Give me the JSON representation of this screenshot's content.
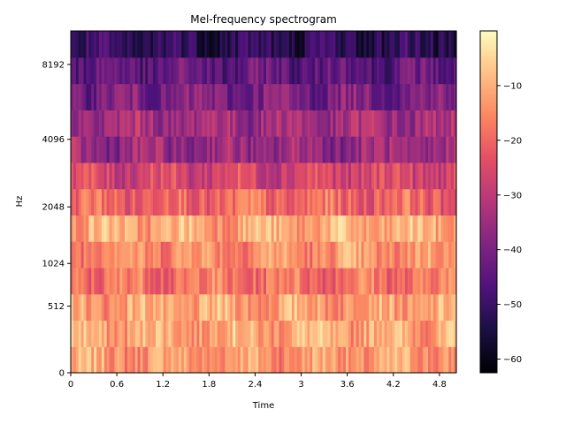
{
  "chart_data": {
    "type": "heatmap",
    "title": "Mel-frequency spectrogram",
    "xlabel": "Time",
    "ylabel": "Hz",
    "x_ticks": [
      "0",
      "0.6",
      "1.2",
      "1.8",
      "2.4",
      "3",
      "3.6",
      "4.2",
      "4.8"
    ],
    "x_tick_values": [
      0,
      0.6,
      1.2,
      1.8,
      2.4,
      3.0,
      3.6,
      4.2,
      4.8
    ],
    "xlim": [
      0,
      5.02
    ],
    "y_ticks": [
      "0",
      "512",
      "1024",
      "2048",
      "4096",
      "8192"
    ],
    "y_scale": "mel",
    "colormap": "magma",
    "colorbar_ticks": [
      "−10",
      "−20",
      "−30",
      "−40",
      "−50",
      "−60"
    ],
    "colorbar_tick_values": [
      -10,
      -20,
      -30,
      -40,
      -50,
      -60
    ],
    "clim": [
      -62.5,
      0
    ],
    "frames": 150,
    "band_profile_db": [
      -13,
      -11,
      -12,
      -18,
      -14,
      -11,
      -20,
      -26,
      -36,
      -34,
      -40,
      -44,
      -52
    ]
  }
}
